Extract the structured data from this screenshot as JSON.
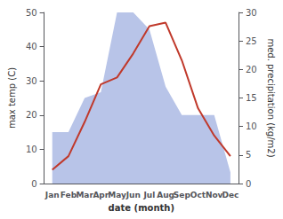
{
  "chart_data": {
    "type": "line",
    "xlabel": "date (month)",
    "ylabel": "max temp (C)",
    "y2label": "med. precipitation (kg/m2)",
    "categories": [
      "Jan",
      "Feb",
      "Mar",
      "Apr",
      "May",
      "Jun",
      "Jul",
      "Aug",
      "Sep",
      "Oct",
      "Nov",
      "Dec"
    ],
    "series": [
      {
        "type": "area",
        "axis": "y2",
        "color": "#b8c4e8",
        "values": [
          9,
          9,
          15,
          16,
          30,
          30,
          27,
          17,
          12,
          12,
          12,
          2
        ]
      },
      {
        "type": "line",
        "color": "#c0392b",
        "values": [
          4,
          8,
          18,
          29,
          31,
          38,
          46,
          47,
          36,
          22,
          14,
          8
        ]
      }
    ],
    "ylim": [
      0,
      50
    ],
    "yticks": [
      0,
      10,
      20,
      30,
      40,
      50
    ],
    "y2lim": [
      0,
      30
    ],
    "y2ticks": [
      0,
      5,
      10,
      15,
      20,
      25,
      30
    ],
    "grid": false
  }
}
